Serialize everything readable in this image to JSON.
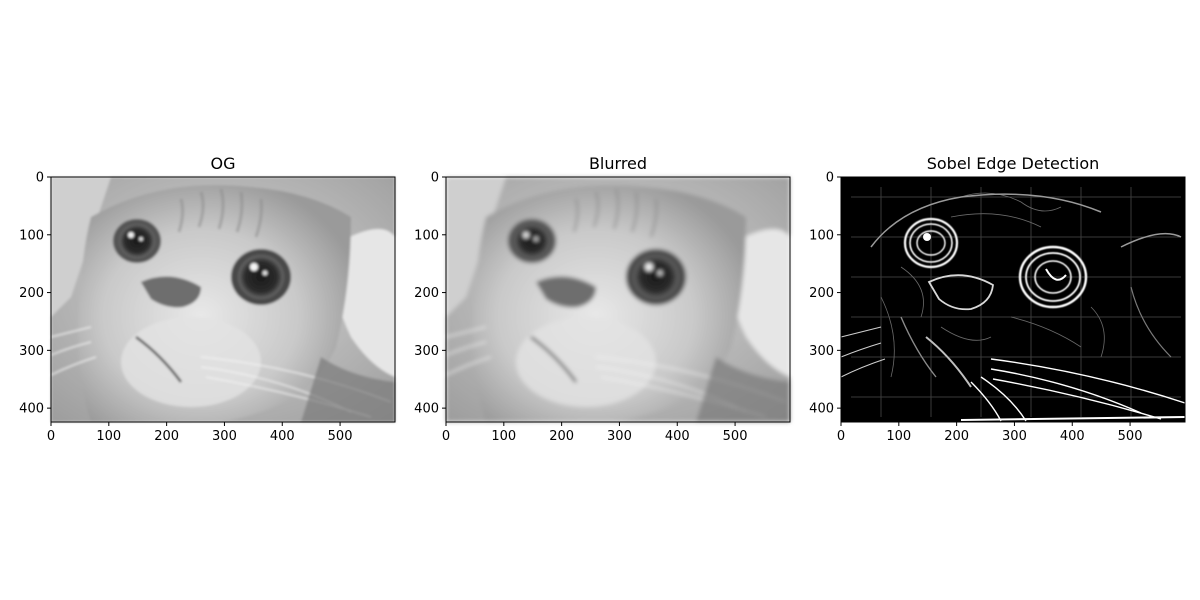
{
  "figure": {
    "panels": [
      {
        "title": "OG",
        "kind": "grayscale-photo",
        "subject": "cat-face",
        "x_ticks": [
          "0",
          "100",
          "200",
          "300",
          "400",
          "500"
        ],
        "y_ticks": [
          "0",
          "100",
          "200",
          "300",
          "400"
        ]
      },
      {
        "title": "Blurred",
        "kind": "grayscale-photo-blurred",
        "subject": "cat-face",
        "x_ticks": [
          "0",
          "100",
          "200",
          "300",
          "400",
          "500"
        ],
        "y_ticks": [
          "0",
          "100",
          "200",
          "300",
          "400"
        ]
      },
      {
        "title": "Sobel Edge Detection",
        "kind": "edge-map",
        "subject": "cat-face",
        "x_ticks": [
          "0",
          "100",
          "200",
          "300",
          "400",
          "500"
        ],
        "y_ticks": [
          "0",
          "100",
          "200",
          "300",
          "400"
        ]
      }
    ],
    "image_extent": {
      "width": 595,
      "height": 424
    }
  }
}
